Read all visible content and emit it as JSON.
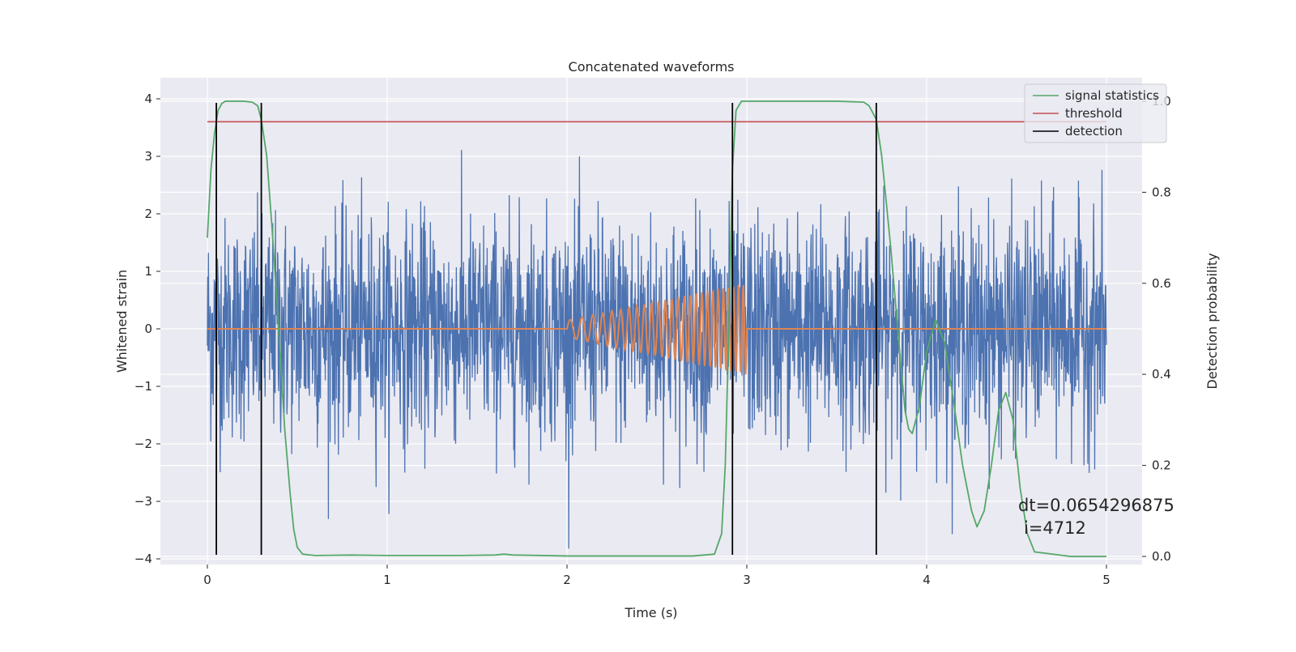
{
  "chart_data": {
    "type": "line",
    "title": "Concatenated waveforms",
    "xlabel": "Time (s)",
    "ylabel": "Whitened strain",
    "y2label": "Detection probability",
    "xlim": [
      -0.25,
      5.35
    ],
    "ylim": [
      -4.35,
      4.35
    ],
    "y2lim": [
      -0.048,
      1.048
    ],
    "x_ticks": [
      0,
      1,
      2,
      3,
      4,
      5
    ],
    "y_ticks": [
      -4,
      -3,
      -2,
      -1,
      0,
      1,
      2,
      3,
      4
    ],
    "y2_ticks": [
      0.0,
      0.2,
      0.4,
      0.6,
      0.8,
      1.0
    ],
    "x_tick_labels": [
      "0",
      "1",
      "2",
      "3",
      "4",
      "5"
    ],
    "y_tick_labels": [
      "−4",
      "−3",
      "−2",
      "−1",
      "0",
      "1",
      "2",
      "3",
      "4"
    ],
    "y2_tick_labels": [
      "0.0",
      "0.2",
      "0.4",
      "0.6",
      "0.8",
      "1.0"
    ],
    "grid": true,
    "legend_position": "top-right",
    "legend": [
      {
        "label": "signal statistics",
        "color": "#55a868"
      },
      {
        "label": "threshold",
        "color": "#c44e52"
      },
      {
        "label": "detection",
        "color": "#000000"
      }
    ],
    "colors": {
      "strain": "#4c72b0",
      "injection": "#dd8452",
      "statistics": "#55a868",
      "threshold": "#c44e52",
      "detection": "#000000",
      "background": "#eaeaf2",
      "grid": "#ffffff"
    },
    "series": [
      {
        "name": "signal statistics",
        "axis": "right",
        "x": [
          0.0,
          0.02,
          0.04,
          0.06,
          0.08,
          0.1,
          0.14,
          0.2,
          0.25,
          0.28,
          0.3,
          0.33,
          0.36,
          0.4,
          0.43,
          0.46,
          0.48,
          0.5,
          0.53,
          0.6,
          0.8,
          1.0,
          1.2,
          1.4,
          1.6,
          1.65,
          1.7,
          2.0,
          2.4,
          2.7,
          2.82,
          2.86,
          2.88,
          2.9,
          2.92,
          2.94,
          2.97,
          3.0,
          3.5,
          3.65,
          3.68,
          3.72,
          3.75,
          3.8,
          3.85,
          3.88,
          3.9,
          3.92,
          3.96,
          4.0,
          4.05,
          4.1,
          4.15,
          4.2,
          4.25,
          4.28,
          4.32,
          4.36,
          4.4,
          4.44,
          4.48,
          4.52,
          4.56,
          4.6,
          4.8,
          5.0
        ],
        "values": [
          0.7,
          0.85,
          0.93,
          0.98,
          0.995,
          1.0,
          1.0,
          1.0,
          0.998,
          0.99,
          0.96,
          0.88,
          0.72,
          0.48,
          0.28,
          0.14,
          0.06,
          0.02,
          0.005,
          0.002,
          0.003,
          0.002,
          0.002,
          0.002,
          0.003,
          0.005,
          0.003,
          0.001,
          0.001,
          0.001,
          0.005,
          0.05,
          0.2,
          0.5,
          0.85,
          0.98,
          1.0,
          1.0,
          1.0,
          0.998,
          0.99,
          0.96,
          0.88,
          0.68,
          0.45,
          0.32,
          0.28,
          0.27,
          0.33,
          0.45,
          0.52,
          0.47,
          0.34,
          0.2,
          0.1,
          0.065,
          0.1,
          0.2,
          0.32,
          0.36,
          0.3,
          0.15,
          0.05,
          0.01,
          0.0,
          0.0
        ]
      },
      {
        "name": "threshold",
        "axis": "right",
        "x": [
          0.0,
          5.0
        ],
        "values": [
          0.955,
          0.955
        ]
      }
    ],
    "detections_x": [
      0.05,
      0.3,
      2.92,
      3.72
    ],
    "injection": {
      "start": 2.0,
      "end": 3.0,
      "amplitude_end": 0.8
    },
    "noise_x_range": [
      0.0,
      5.0
    ],
    "annotation": [
      "dt=0.0654296875",
      "i=4712"
    ]
  }
}
